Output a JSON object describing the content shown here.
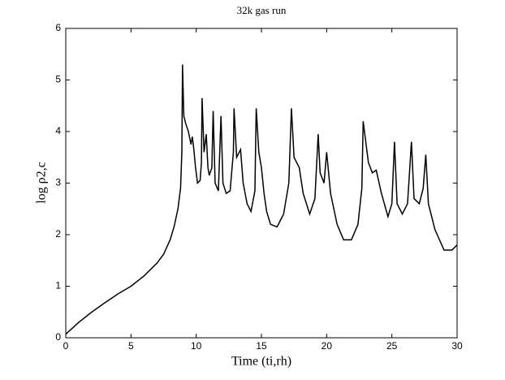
{
  "chart_data": {
    "type": "line",
    "title": "32k gas run",
    "x_label": "Time (ti,rh)",
    "y_label": "log ρ2,c",
    "xlim": [
      0,
      30
    ],
    "ylim": [
      0,
      6
    ],
    "xticks": [
      0,
      5,
      10,
      15,
      20,
      25,
      30
    ],
    "yticks": [
      0,
      1,
      2,
      3,
      4,
      5,
      6
    ],
    "x": [
      0,
      1,
      2,
      3,
      4,
      5,
      6,
      7,
      7.5,
      8,
      8.3,
      8.6,
      8.8,
      8.9,
      8.95,
      9.05,
      9.2,
      9.4,
      9.6,
      9.7,
      9.8,
      9.95,
      10.1,
      10.3,
      10.4,
      10.45,
      10.6,
      10.77,
      10.9,
      11.0,
      11.2,
      11.3,
      11.45,
      11.7,
      11.9,
      12.05,
      12.3,
      12.6,
      12.85,
      12.9,
      13.1,
      13.4,
      13.6,
      13.9,
      14.2,
      14.5,
      14.6,
      14.8,
      15.0,
      15.2,
      15.4,
      15.7,
      16.2,
      16.7,
      17.1,
      17.3,
      17.5,
      17.9,
      18.2,
      18.7,
      19.1,
      19.35,
      19.5,
      19.8,
      20.0,
      20.3,
      20.8,
      21.3,
      21.9,
      22.4,
      22.7,
      22.8,
      23.2,
      23.5,
      23.8,
      24.2,
      24.7,
      25.0,
      25.2,
      25.4,
      25.8,
      26.2,
      26.5,
      26.7,
      27.1,
      27.4,
      27.6,
      27.8,
      28.3,
      29.0,
      29.6,
      30
    ],
    "series": [
      {
        "color": "#000000",
        "values": [
          0.07,
          0.3,
          0.5,
          0.68,
          0.85,
          1.0,
          1.2,
          1.45,
          1.62,
          1.9,
          2.15,
          2.5,
          2.9,
          3.6,
          5.3,
          4.3,
          4.15,
          4.0,
          3.75,
          3.9,
          3.7,
          3.3,
          3.0,
          3.05,
          3.4,
          4.65,
          3.6,
          3.95,
          3.3,
          3.15,
          3.3,
          4.4,
          3.0,
          2.85,
          4.3,
          3.0,
          2.8,
          2.85,
          3.6,
          4.45,
          3.5,
          3.65,
          3.0,
          2.6,
          2.45,
          2.85,
          4.45,
          3.6,
          3.3,
          2.8,
          2.45,
          2.2,
          2.15,
          2.4,
          3.0,
          4.45,
          3.5,
          3.3,
          2.8,
          2.4,
          2.7,
          3.95,
          3.2,
          3.0,
          3.6,
          2.8,
          2.2,
          1.9,
          1.9,
          2.2,
          2.9,
          4.2,
          3.4,
          3.2,
          3.25,
          2.8,
          2.35,
          2.6,
          3.8,
          2.6,
          2.4,
          2.6,
          3.8,
          2.7,
          2.6,
          2.9,
          3.55,
          2.6,
          2.1,
          1.7,
          1.7,
          1.8
        ]
      }
    ]
  }
}
